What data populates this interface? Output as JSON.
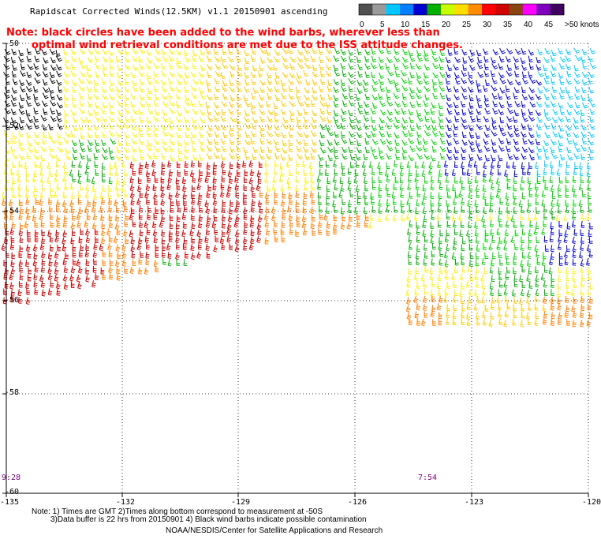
{
  "title": "Rapidscat Corrected Winds(12.5KM) v1.1 20150901 ascending",
  "note": {
    "line1": "Note: black circles have been added to the wind barbs, wherever less than",
    "line2": "optimal wind retrieval conditions are met due to the ISS attitude changes."
  },
  "legend": {
    "labels": [
      "0",
      "5",
      "10",
      "15",
      "20",
      "25",
      "30",
      "35",
      "40",
      "45",
      ">50 knots"
    ],
    "colors": [
      "#505050",
      "#9a9a9a",
      "#00c8ff",
      "#0080ff",
      "#0000d0",
      "#00b000",
      "#c8ff00",
      "#ffdd00",
      "#ff8c00",
      "#ff0000",
      "#d00000",
      "#8b4513",
      "#ff00ff",
      "#8000c0",
      "#400060"
    ]
  },
  "latitudes": [
    "-50",
    "-52",
    "-54",
    "-56",
    "-58",
    "-60"
  ],
  "longitudes": [
    "-135",
    "-132",
    "-129",
    "-126",
    "-123",
    "-120"
  ],
  "times": [
    "9:28",
    "7:54"
  ],
  "footnotes": {
    "line1": "Note: 1) Times are GMT 2)Times along bottom correspond to measurement at -50S",
    "line2": "3)Data buffer is 22 hrs from 20150901 4) Black wind barbs indicate possible contamination",
    "line3": "NOAA/NESDIS/Center for Satellite Applications and Research"
  },
  "map_colors": {
    "speed_15_20": "#ffee00",
    "speed_20_25": "#ffc800",
    "speed_25_30": "#ff8000",
    "speed_30_35": "#ff2020",
    "speed_10_15": "#00b000",
    "speed_5_10": "#0000cc",
    "speed_0_5": "#00c8ff",
    "contaminated": "#000000",
    "dark_red": "#c80000",
    "light_green": "#00d000"
  }
}
